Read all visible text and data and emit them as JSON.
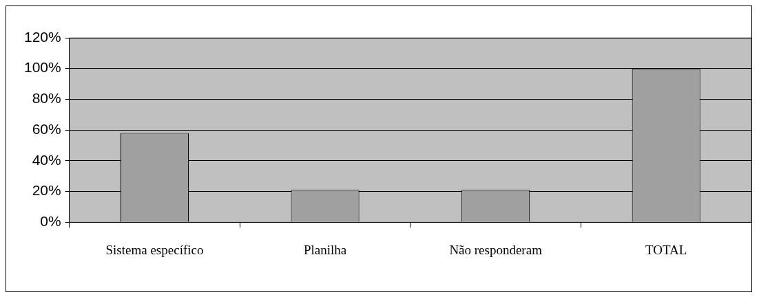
{
  "chart_data": {
    "type": "bar",
    "categories": [
      "Sistema específico",
      "Planilha",
      "Não responderam",
      "TOTAL"
    ],
    "values": [
      58,
      21,
      21,
      100
    ],
    "color": "#a0a0a0",
    "ylim": [
      0,
      120
    ],
    "yticks": [
      {
        "value": 0,
        "label": "0%"
      },
      {
        "value": 20,
        "label": "20%"
      },
      {
        "value": 40,
        "label": "40%"
      },
      {
        "value": 60,
        "label": "60%"
      },
      {
        "value": 80,
        "label": "80%"
      },
      {
        "value": 100,
        "label": "100%"
      },
      {
        "value": 120,
        "label": "120%"
      }
    ],
    "grid": "y",
    "legend": false
  }
}
